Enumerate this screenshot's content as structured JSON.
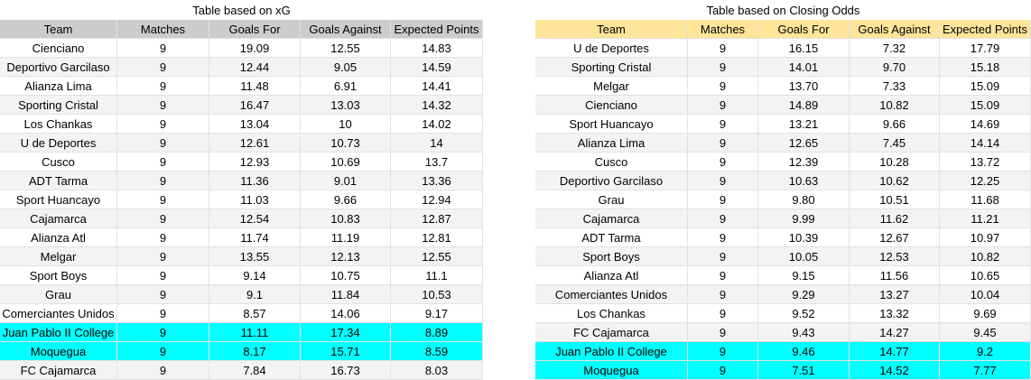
{
  "xg_table": {
    "title": "Table based on xG",
    "columns": [
      "Team",
      "Matches",
      "Goals For",
      "Goals Against",
      "Expected Points"
    ],
    "rows": [
      [
        "Cienciano",
        "9",
        "19.09",
        "12.55",
        "14.83"
      ],
      [
        "Deportivo Garcilaso",
        "9",
        "12.44",
        "9.05",
        "14.59"
      ],
      [
        "Alianza Lima",
        "9",
        "11.48",
        "6.91",
        "14.41"
      ],
      [
        "Sporting Cristal",
        "9",
        "16.47",
        "13.03",
        "14.32"
      ],
      [
        "Los Chankas",
        "9",
        "13.04",
        "10",
        "14.02"
      ],
      [
        "U de Deportes",
        "9",
        "12.61",
        "10.73",
        "14"
      ],
      [
        "Cusco",
        "9",
        "12.93",
        "10.69",
        "13.7"
      ],
      [
        "ADT Tarma",
        "9",
        "11.36",
        "9.01",
        "13.36"
      ],
      [
        "Sport Huancayo",
        "9",
        "11.03",
        "9.66",
        "12.94"
      ],
      [
        "Cajamarca",
        "9",
        "12.54",
        "10.83",
        "12.87"
      ],
      [
        "Alianza Atl",
        "9",
        "11.74",
        "11.19",
        "12.81"
      ],
      [
        "Melgar",
        "9",
        "13.55",
        "12.13",
        "12.55"
      ],
      [
        "Sport Boys",
        "9",
        "9.14",
        "10.75",
        "11.1"
      ],
      [
        "Grau",
        "9",
        "9.1",
        "11.84",
        "10.53"
      ],
      [
        "Comerciantes Unidos",
        "9",
        "8.57",
        "14.06",
        "9.17"
      ],
      [
        "Juan Pablo II College",
        "9",
        "11.11",
        "17.34",
        "8.89"
      ],
      [
        "Moquegua",
        "9",
        "8.17",
        "15.71",
        "8.59"
      ],
      [
        "FC Cajamarca",
        "9",
        "7.84",
        "16.73",
        "8.03"
      ]
    ]
  },
  "odds_table": {
    "title": "Table based on Closing Odds",
    "columns": [
      "Team",
      "Matches",
      "Goals For",
      "Goals Against",
      "Expected Points"
    ],
    "rows": [
      [
        "U de Deportes",
        "9",
        "16.15",
        "7.32",
        "17.79"
      ],
      [
        "Sporting Cristal",
        "9",
        "14.01",
        "9.70",
        "15.18"
      ],
      [
        "Melgar",
        "9",
        "13.70",
        "7.33",
        "15.09"
      ],
      [
        "Cienciano",
        "9",
        "14.89",
        "10.82",
        "15.09"
      ],
      [
        "Sport Huancayo",
        "9",
        "13.21",
        "9.66",
        "14.69"
      ],
      [
        "Alianza Lima",
        "9",
        "12.65",
        "7.45",
        "14.14"
      ],
      [
        "Cusco",
        "9",
        "12.39",
        "10.28",
        "13.72"
      ],
      [
        "Deportivo Garcilaso",
        "9",
        "10.63",
        "10.62",
        "12.25"
      ],
      [
        "Grau",
        "9",
        "9.80",
        "10.51",
        "11.68"
      ],
      [
        "Cajamarca",
        "9",
        "9.99",
        "11.62",
        "11.21"
      ],
      [
        "ADT Tarma",
        "9",
        "10.39",
        "12.67",
        "10.97"
      ],
      [
        "Sport Boys",
        "9",
        "10.05",
        "12.53",
        "10.82"
      ],
      [
        "Alianza Atl",
        "9",
        "9.15",
        "11.56",
        "10.65"
      ],
      [
        "Comerciantes Unidos",
        "9",
        "9.29",
        "13.27",
        "10.04"
      ],
      [
        "Los Chankas",
        "9",
        "9.52",
        "13.32",
        "9.69"
      ],
      [
        "FC Cajamarca",
        "9",
        "9.43",
        "14.27",
        "9.45"
      ],
      [
        "Juan Pablo II College",
        "9",
        "9.46",
        "14.77",
        "9.2"
      ],
      [
        "Moquegua",
        "9",
        "7.51",
        "14.52",
        "7.77"
      ]
    ]
  }
}
